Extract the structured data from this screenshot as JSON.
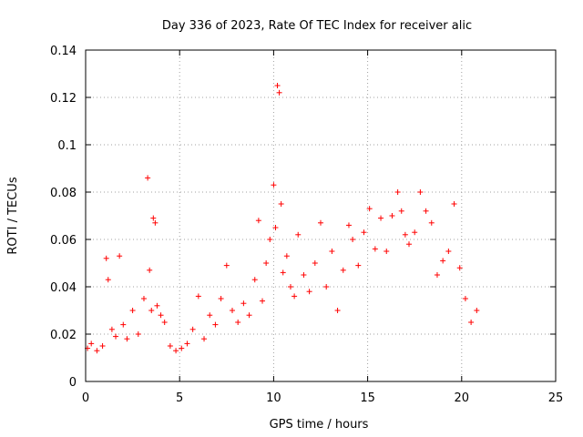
{
  "chart_data": {
    "type": "scatter",
    "title": "Day 336 of 2023, Rate Of TEC Index for receiver alic",
    "xlabel": "GPS time / hours",
    "ylabel": "ROTI / TECUs",
    "xlim": [
      0,
      25
    ],
    "ylim": [
      0,
      0.14
    ],
    "xticks": [
      "0",
      "5",
      "10",
      "15",
      "20",
      "25"
    ],
    "yticks": [
      "0",
      "0.02",
      "0.04",
      "0.06",
      "0.08",
      "0.1",
      "0.12",
      "0.14"
    ],
    "grid": true,
    "marker": "+",
    "color": "#ff0000",
    "series": [
      {
        "x": [
          0.1,
          0.3,
          0.6,
          0.9,
          1.1,
          1.2,
          1.4,
          1.6,
          1.8,
          2.0,
          2.2,
          2.5,
          2.8,
          3.1,
          3.3,
          3.4,
          3.5,
          3.6,
          3.7,
          3.8,
          4.0,
          4.2,
          4.5,
          4.8,
          5.1,
          5.4,
          5.7,
          6.0,
          6.3,
          6.6,
          6.9,
          7.2,
          7.5,
          7.8,
          8.1,
          8.4,
          8.7,
          9.0,
          9.2,
          9.4,
          9.6,
          9.8,
          10.0,
          10.1,
          10.2,
          10.3,
          10.4,
          10.5,
          10.7,
          10.9,
          11.1,
          11.3,
          11.6,
          11.9,
          12.2,
          12.5,
          12.8,
          13.1,
          13.4,
          13.7,
          14.0,
          14.2,
          14.5,
          14.8,
          15.1,
          15.4,
          15.7,
          16.0,
          16.3,
          16.6,
          16.8,
          17.0,
          17.2,
          17.5,
          17.8,
          18.1,
          18.4,
          18.7,
          19.0,
          19.3,
          19.6,
          19.9,
          20.2,
          20.5,
          20.8
        ],
        "y": [
          0.014,
          0.016,
          0.013,
          0.015,
          0.052,
          0.043,
          0.022,
          0.019,
          0.053,
          0.024,
          0.018,
          0.03,
          0.02,
          0.035,
          0.086,
          0.047,
          0.03,
          0.069,
          0.067,
          0.032,
          0.028,
          0.025,
          0.015,
          0.013,
          0.014,
          0.016,
          0.022,
          0.036,
          0.018,
          0.028,
          0.024,
          0.035,
          0.049,
          0.03,
          0.025,
          0.033,
          0.028,
          0.043,
          0.068,
          0.034,
          0.05,
          0.06,
          0.083,
          0.065,
          0.125,
          0.122,
          0.075,
          0.046,
          0.053,
          0.04,
          0.036,
          0.062,
          0.045,
          0.038,
          0.05,
          0.067,
          0.04,
          0.055,
          0.03,
          0.047,
          0.066,
          0.06,
          0.049,
          0.063,
          0.073,
          0.056,
          0.069,
          0.055,
          0.07,
          0.08,
          0.072,
          0.062,
          0.058,
          0.063,
          0.08,
          0.072,
          0.067,
          0.045,
          0.051,
          0.055,
          0.075,
          0.048,
          0.035,
          0.025,
          0.03
        ]
      }
    ]
  }
}
